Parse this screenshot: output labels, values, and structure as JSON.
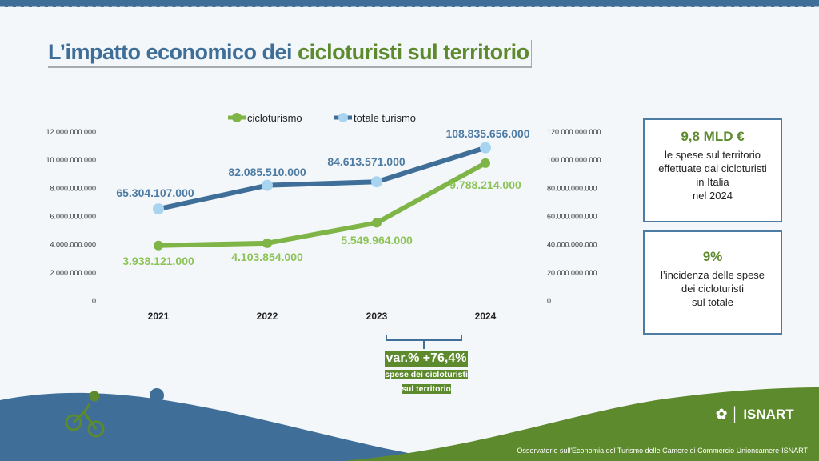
{
  "title": {
    "part1": "L’impatto economico dei ",
    "part2": "cicloturisti sul territorio"
  },
  "chart_data": {
    "type": "line",
    "categories": [
      "2021",
      "2022",
      "2023",
      "2024"
    ],
    "series": [
      {
        "name": "cicloturismo",
        "axis": "left",
        "color": "#7fb547",
        "values": [
          3938121000,
          4103854000,
          5549964000,
          9788214000
        ],
        "labels": [
          "3.938.121.000",
          "4.103.854.000",
          "5.549.964.000",
          "9.788.214.000"
        ]
      },
      {
        "name": "totale turismo",
        "axis": "right",
        "color": "#3f6f99",
        "marker": "#a8d4f0",
        "values": [
          65304107000,
          82085510000,
          84613571000,
          108835656000
        ],
        "labels": [
          "65.304.107.000",
          "82.085.510.000",
          "84.613.571.000",
          "108.835.656.000"
        ]
      }
    ],
    "ylim_left": [
      0,
      12000000000
    ],
    "ylim_right": [
      0,
      120000000000
    ],
    "left_ticks": [
      "0",
      "2.000.000.000",
      "4.000.000.000",
      "6.000.000.000",
      "8.000.000.000",
      "10.000.000.000",
      "12.000.000.000"
    ],
    "right_ticks": [
      "0",
      "20.000.000.000",
      "40.000.000.000",
      "60.000.000.000",
      "80.000.000.000",
      "100.000.000.000",
      "120.000.000.000"
    ],
    "legend": "top",
    "grid": false
  },
  "variation": {
    "value": "var.% +76,4%",
    "line1": "spese dei cicloturisti",
    "line2": "sul territorio"
  },
  "box1": {
    "big": "9,8 MLD €",
    "l1": "le spese sul territorio",
    "l2": "effettuate dai cicloturisti",
    "l3": "in Italia",
    "l4": "nel 2024"
  },
  "box2": {
    "big": "9%",
    "l1": "l’incidenza delle spese",
    "l2": "dei cicloturisti",
    "l3": "sul totale"
  },
  "footer": {
    "logo": "ISNART",
    "credit": "Osservatorio sull'Economia del Turismo delle Camere di Commercio Unioncamere-ISNART"
  }
}
